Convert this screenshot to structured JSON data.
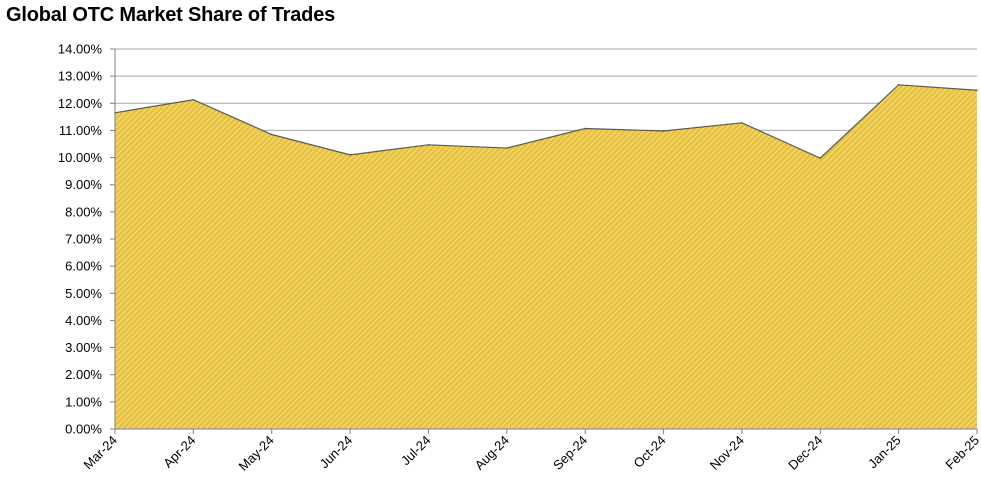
{
  "chart_data": {
    "type": "area",
    "title": "Global OTC Market Share of Trades",
    "categories": [
      "Mar-24",
      "Apr-24",
      "May-24",
      "Jun-24",
      "Jul-24",
      "Aug-24",
      "Sep-24",
      "Oct-24",
      "Nov-24",
      "Dec-24",
      "Jan-25",
      "Feb-25"
    ],
    "series": [
      {
        "values": [
          11.65,
          12.13,
          10.85,
          10.1,
          10.47,
          10.35,
          11.07,
          10.98,
          11.28,
          9.98,
          12.68,
          12.48
        ]
      }
    ],
    "y_tick_labels": [
      "0.00%",
      "1.00%",
      "2.00%",
      "3.00%",
      "4.00%",
      "5.00%",
      "6.00%",
      "7.00%",
      "8.00%",
      "9.00%",
      "10.00%",
      "11.00%",
      "12.00%",
      "13.00%",
      "14.00%"
    ],
    "ylim": [
      0,
      14
    ],
    "grid": true,
    "legend": "none",
    "colors": {
      "fill": "#e8c23a",
      "hatch": "#ffffff",
      "outline": "#4a5a7a",
      "grid": "#a6a6a6",
      "axis": "#808080"
    }
  }
}
